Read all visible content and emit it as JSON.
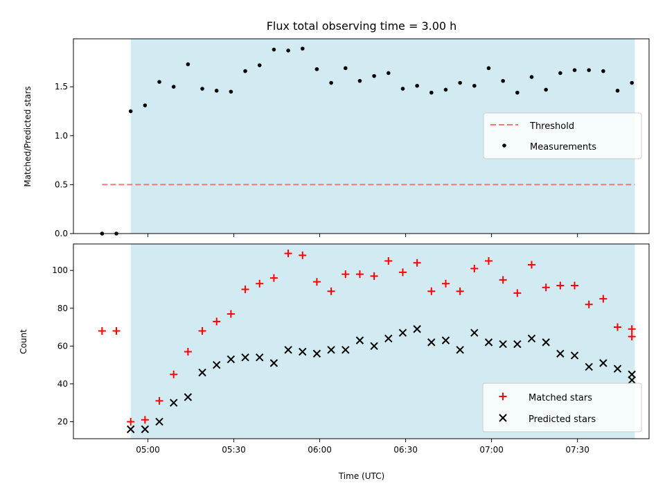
{
  "title": "Flux total observing time = 3.00 h",
  "xlabel": "Time (UTC)",
  "x_tick_labels": [
    "05:00",
    "05:30",
    "06:00",
    "06:30",
    "07:00",
    "07:30"
  ],
  "colors": {
    "shade": "#add8e6",
    "threshold": "#f07878",
    "measurements": "#000000",
    "matched": "#ff0000",
    "predicted": "#000000"
  },
  "chart_data": [
    {
      "type": "scatter",
      "panel": "top",
      "ylabel": "Matched/Predicted stars",
      "y_tick_labels": [
        "0.0",
        "0.5",
        "1.0",
        "1.5"
      ],
      "ylim": [
        0.0,
        1.99
      ],
      "xlim": [
        "04:34",
        "07:55"
      ],
      "shaded_interval": [
        "04:54",
        "07:50"
      ],
      "legend": {
        "position": "center-right",
        "entries": [
          "Threshold",
          "Measurements"
        ]
      },
      "threshold": {
        "name": "Threshold",
        "value": 0.5,
        "x_range": [
          "04:44",
          "07:50"
        ]
      },
      "series": [
        {
          "name": "Measurements",
          "marker": "dot",
          "x": [
            "04:44",
            "04:49",
            "04:54",
            "04:59",
            "05:04",
            "05:09",
            "05:14",
            "05:19",
            "05:24",
            "05:29",
            "05:34",
            "05:39",
            "05:44",
            "05:49",
            "05:54",
            "05:59",
            "06:04",
            "06:09",
            "06:14",
            "06:19",
            "06:24",
            "06:29",
            "06:34",
            "06:39",
            "06:44",
            "06:49",
            "06:54",
            "06:59",
            "07:04",
            "07:09",
            "07:14",
            "07:19",
            "07:24",
            "07:29",
            "07:34",
            "07:39",
            "07:44",
            "07:49"
          ],
          "values": [
            0.0,
            0.0,
            1.25,
            1.31,
            1.55,
            1.5,
            1.73,
            1.48,
            1.46,
            1.45,
            1.66,
            1.72,
            1.88,
            1.87,
            1.89,
            1.68,
            1.54,
            1.69,
            1.56,
            1.61,
            1.64,
            1.48,
            1.51,
            1.44,
            1.47,
            1.54,
            1.51,
            1.69,
            1.56,
            1.44,
            1.6,
            1.47,
            1.64,
            1.67,
            1.67,
            1.66,
            1.46,
            1.54
          ]
        }
      ]
    },
    {
      "type": "scatter",
      "panel": "bottom",
      "ylabel": "Count",
      "y_tick_labels": [
        "20",
        "40",
        "60",
        "80",
        "100"
      ],
      "ylim": [
        11,
        114
      ],
      "xlim": [
        "04:34",
        "07:55"
      ],
      "shaded_interval": [
        "04:54",
        "07:50"
      ],
      "legend": {
        "position": "lower-right",
        "entries": [
          "Matched stars",
          "Predicted stars"
        ]
      },
      "x": [
        "04:44",
        "04:49",
        "04:54",
        "04:59",
        "05:04",
        "05:09",
        "05:14",
        "05:19",
        "05:24",
        "05:29",
        "05:34",
        "05:39",
        "05:44",
        "05:49",
        "05:54",
        "05:59",
        "06:04",
        "06:09",
        "06:14",
        "06:19",
        "06:24",
        "06:29",
        "06:34",
        "06:39",
        "06:44",
        "06:49",
        "06:54",
        "06:59",
        "07:04",
        "07:09",
        "07:14",
        "07:19",
        "07:24",
        "07:29",
        "07:34",
        "07:39",
        "07:44",
        "07:49"
      ],
      "series": [
        {
          "name": "Matched stars",
          "marker": "plus",
          "values": [
            68,
            68,
            20,
            21,
            31,
            45,
            57,
            68,
            73,
            77,
            90,
            93,
            96,
            109,
            108,
            94,
            89,
            98,
            98,
            97,
            105,
            99,
            104,
            89,
            93,
            89,
            101,
            105,
            95,
            88,
            103,
            91,
            92,
            92,
            82,
            85,
            70,
            69
          ]
        },
        {
          "name": "Predicted stars",
          "marker": "x",
          "values": [
            null,
            null,
            16,
            16,
            20,
            30,
            33,
            46,
            50,
            53,
            54,
            54,
            51,
            58,
            57,
            56,
            58,
            58,
            63,
            60,
            64,
            67,
            69,
            62,
            63,
            58,
            67,
            62,
            61,
            61,
            64,
            62,
            56,
            55,
            49,
            51,
            48,
            45
          ]
        }
      ],
      "matched_last_extra": {
        "x": "07:49",
        "value": 65
      },
      "predicted_last_extra": {
        "x": "07:49",
        "value": 42
      }
    }
  ]
}
